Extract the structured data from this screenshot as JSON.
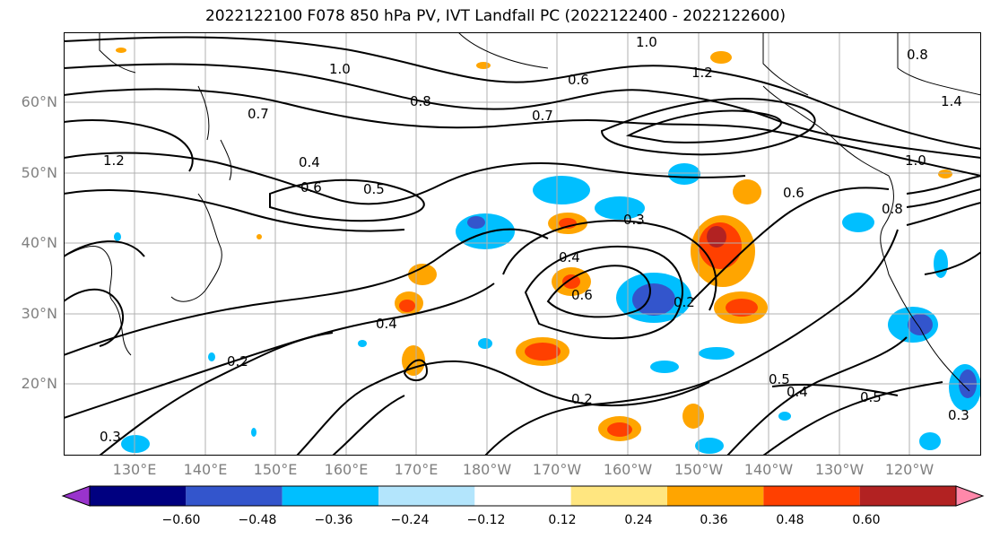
{
  "title": "2022122100 F078 850 hPa PV, IVT Landfall PC (2022122400 - 2022122600)",
  "lat_labels": [
    "60°N",
    "50°N",
    "40°N",
    "30°N",
    "20°N"
  ],
  "lon_labels": [
    "130°E",
    "140°E",
    "150°E",
    "160°E",
    "170°E",
    "180°W",
    "170°W",
    "160°W",
    "150°W",
    "140°W",
    "130°W",
    "120°W"
  ],
  "colorbar": {
    "ticks": [
      "−0.60",
      "−0.48",
      "−0.36",
      "−0.24",
      "−0.12",
      "0.12",
      "0.24",
      "0.36",
      "0.48",
      "0.60"
    ],
    "colors": [
      "#9933cc",
      "#000080",
      "#3355cc",
      "#00bfff",
      "#b3e5fc",
      "#ffffff",
      "#ffe680",
      "#ffa500",
      "#ff4000",
      "#b22222",
      "#ff88aa"
    ]
  },
  "contour_labels": [
    "1.0",
    "1.0",
    "0.8",
    "0.7",
    "0.7",
    "0.6",
    "0.6",
    "0.5",
    "0.4",
    "1.2",
    "1.2",
    "1.4",
    "1.0",
    "0.8",
    "0.8",
    "0.3",
    "0.4",
    "0.6",
    "0.4",
    "0.2",
    "0.2",
    "0.2",
    "0.5",
    "0.4",
    "0.5",
    "0.3",
    "0.3",
    "0.6"
  ]
}
